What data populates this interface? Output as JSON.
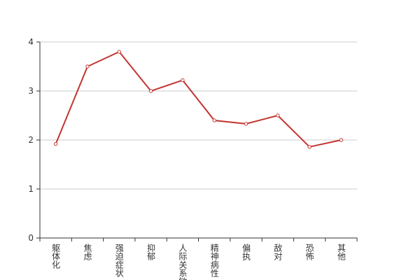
{
  "chart_data": {
    "type": "line",
    "categories": [
      "躯体化",
      "焦虑",
      "强迫症状",
      "抑郁",
      "人际关系敏感",
      "精神病性",
      "偏执",
      "敌对",
      "恐怖",
      "其他"
    ],
    "series": [
      {
        "color": "#c23531",
        "values": [
          1.92,
          3.5,
          3.8,
          3.0,
          3.22,
          2.4,
          2.33,
          2.5,
          1.86,
          2.0
        ]
      }
    ],
    "ylim": [
      0,
      4
    ],
    "yticks": [
      0,
      1,
      2,
      3,
      4
    ],
    "grid": true
  }
}
